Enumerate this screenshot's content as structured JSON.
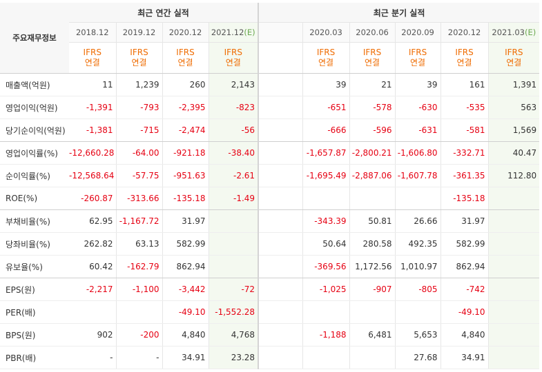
{
  "header": {
    "corner_label": "주요재무정보",
    "annual_group": "최근 연간 실적",
    "quarter_group": "최근 분기 실적",
    "estimate_mark": "(E)"
  },
  "annual_periods": [
    "2018.12",
    "2019.12",
    "2020.12",
    "2021.12"
  ],
  "quarter_periods": [
    "2020.03",
    "2020.06",
    "2020.09",
    "2020.12",
    "2021.03"
  ],
  "basis": {
    "line1": "IFRS",
    "line2": "연결"
  },
  "rows": [
    {
      "label": "매출액(억원)",
      "annual": [
        "11",
        "1,239",
        "260",
        "2,143"
      ],
      "quarter": [
        "39",
        "21",
        "39",
        "161",
        "1,391"
      ]
    },
    {
      "label": "영업이익(억원)",
      "annual": [
        "-1,391",
        "-793",
        "-2,395",
        "-823"
      ],
      "quarter": [
        "-651",
        "-578",
        "-630",
        "-535",
        "563"
      ]
    },
    {
      "label": "당기순이익(억원)",
      "annual": [
        "-1,381",
        "-715",
        "-2,474",
        "-56"
      ],
      "quarter": [
        "-666",
        "-596",
        "-631",
        "-581",
        "1,569"
      ]
    },
    {
      "label": "영업이익률(%)",
      "annual": [
        "-12,660.28",
        "-64.00",
        "-921.18",
        "-38.40"
      ],
      "quarter": [
        "-1,657.87",
        "-2,800.21",
        "-1,606.80",
        "-332.71",
        "40.47"
      ]
    },
    {
      "label": "순이익률(%)",
      "annual": [
        "-12,568.64",
        "-57.75",
        "-951.63",
        "-2.61"
      ],
      "quarter": [
        "-1,695.49",
        "-2,887.06",
        "-1,607.78",
        "-361.35",
        "112.80"
      ]
    },
    {
      "label": "ROE(%)",
      "annual": [
        "-260.87",
        "-313.66",
        "-135.18",
        "-1.49"
      ],
      "quarter": [
        "",
        "",
        "",
        "-135.18",
        ""
      ]
    },
    {
      "label": "부채비율(%)",
      "annual": [
        "62.95",
        "-1,167.72",
        "31.97",
        ""
      ],
      "quarter": [
        "-343.39",
        "50.81",
        "26.66",
        "31.97",
        ""
      ]
    },
    {
      "label": "당좌비율(%)",
      "annual": [
        "262.82",
        "63.13",
        "582.99",
        ""
      ],
      "quarter": [
        "50.64",
        "280.58",
        "492.35",
        "582.99",
        ""
      ]
    },
    {
      "label": "유보율(%)",
      "annual": [
        "60.42",
        "-162.79",
        "862.94",
        ""
      ],
      "quarter": [
        "-369.56",
        "1,172.56",
        "1,010.97",
        "862.94",
        ""
      ]
    },
    {
      "label": "EPS(원)",
      "annual": [
        "-2,217",
        "-1,100",
        "-3,442",
        "-72"
      ],
      "quarter": [
        "-1,025",
        "-907",
        "-805",
        "-742",
        ""
      ]
    },
    {
      "label": "PER(배)",
      "annual": [
        "",
        "",
        "-49.10",
        "-1,552.28"
      ],
      "quarter": [
        "",
        "",
        "",
        "-49.10",
        ""
      ]
    },
    {
      "label": "BPS(원)",
      "annual": [
        "902",
        "-200",
        "4,840",
        "4,768"
      ],
      "quarter": [
        "-1,188",
        "6,481",
        "5,653",
        "4,840",
        ""
      ]
    },
    {
      "label": "PBR(배)",
      "annual": [
        "-",
        "-",
        "34.91",
        "23.28"
      ],
      "quarter": [
        "",
        "",
        "27.68",
        "34.91",
        ""
      ]
    }
  ]
}
